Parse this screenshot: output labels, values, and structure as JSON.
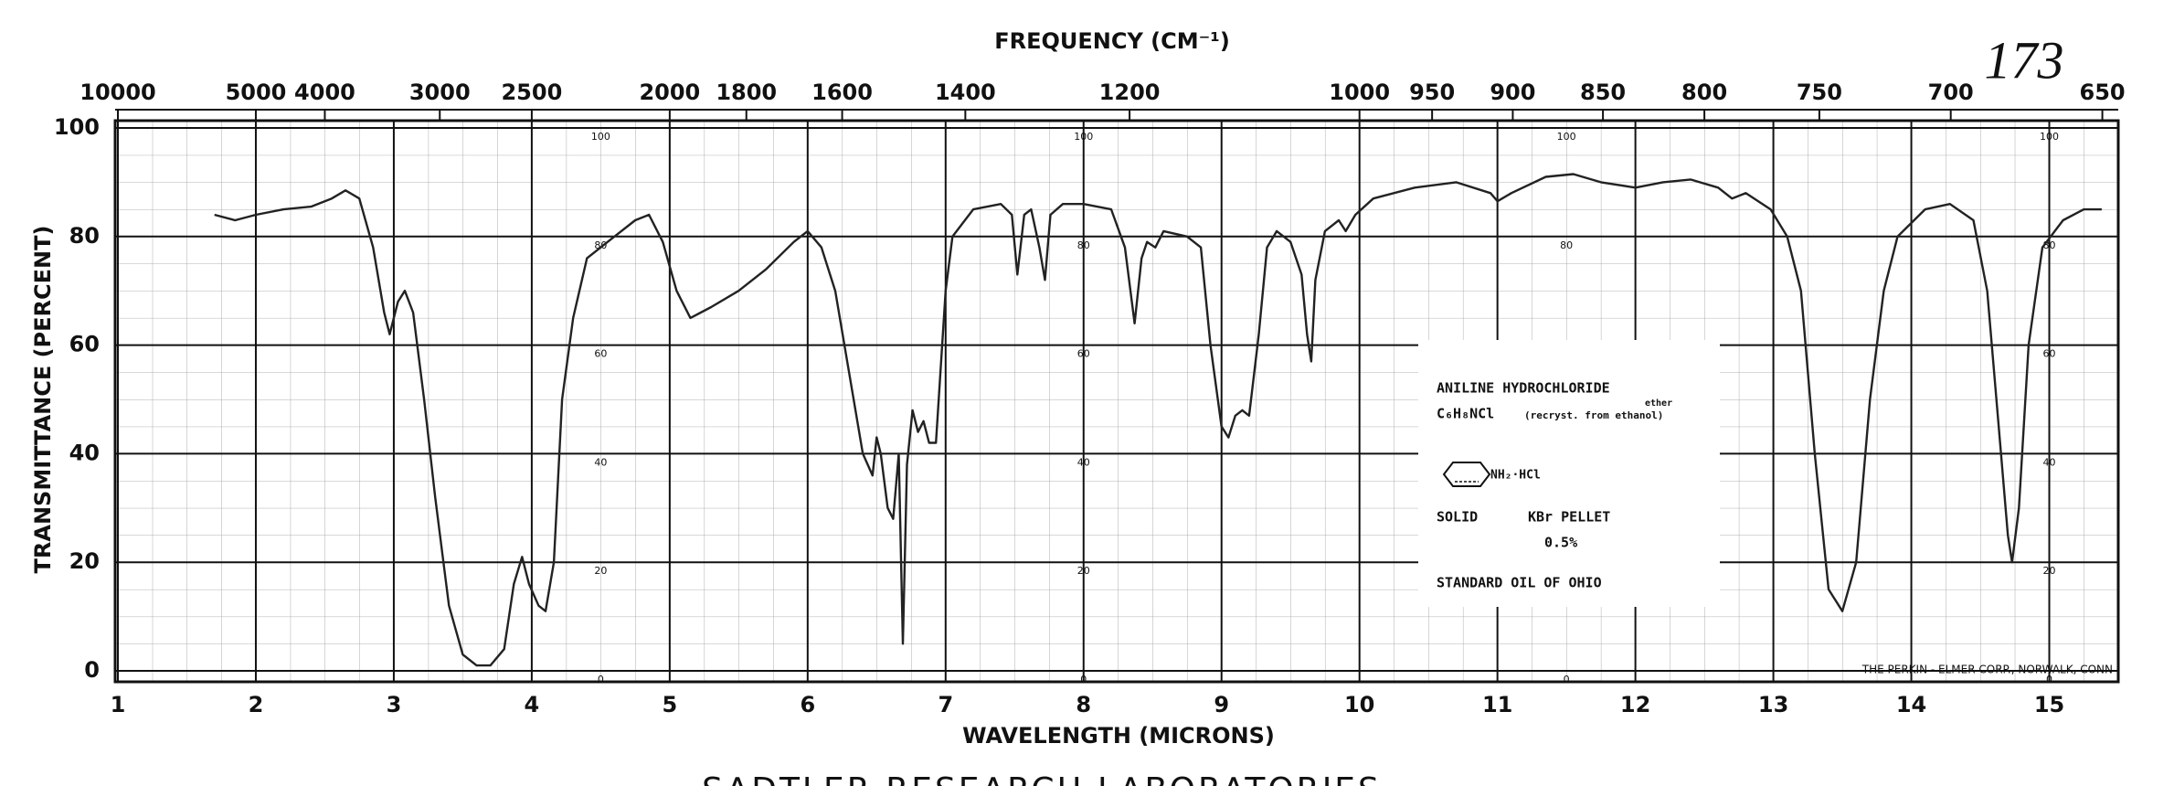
{
  "chart_data": {
    "type": "line",
    "title": "FREQUENCY (CM⁻¹)",
    "x_label": "WAVELENGTH (MICRONS)",
    "y_label": "TRANSMITTANCE (PERCENT)",
    "footer": "SADTLER RESEARCH LABORATORIES",
    "handwritten_number": "173",
    "credit": "THE PERKIN - ELMER CORP., NORWALK, CONN",
    "sample_box": {
      "compound": "ANILINE HYDROCHLORIDE",
      "formula": "C₆H₈NCl",
      "recrystallization": "(recryst. from ethanol)",
      "correction": "ether",
      "structure_label": "NH₂·HCl",
      "state": "SOLID",
      "method": "KBr PELLET",
      "concentration": "0.5%",
      "source": "STANDARD OIL OF OHIO"
    },
    "color": "#222222",
    "grid": true,
    "xlim": [
      1,
      15.5
    ],
    "ylim": [
      0,
      100
    ],
    "xticks": [
      1,
      2,
      3,
      4,
      5,
      6,
      7,
      8,
      9,
      10,
      11,
      12,
      13,
      14,
      15
    ],
    "yticks": [
      0,
      20,
      40,
      60,
      80,
      100
    ],
    "x2ticks": [
      10000,
      5000,
      4000,
      3000,
      2500,
      2000,
      1800,
      1600,
      1400,
      1200,
      1000,
      950,
      900,
      850,
      800,
      750,
      700,
      650
    ],
    "x": [
      1.7,
      1.85,
      2.0,
      2.2,
      2.4,
      2.55,
      2.65,
      2.75,
      2.85,
      2.93,
      2.97,
      3.03,
      3.08,
      3.14,
      3.22,
      3.3,
      3.4,
      3.5,
      3.6,
      3.7,
      3.8,
      3.87,
      3.93,
      3.98,
      4.05,
      4.1,
      4.16,
      4.22,
      4.3,
      4.4,
      4.55,
      4.75,
      4.85,
      4.95,
      5.05,
      5.15,
      5.3,
      5.5,
      5.7,
      5.9,
      6.0,
      6.1,
      6.2,
      6.3,
      6.4,
      6.47,
      6.5,
      6.53,
      6.58,
      6.62,
      6.66,
      6.69,
      6.72,
      6.76,
      6.8,
      6.84,
      6.88,
      6.93,
      7.0,
      7.05,
      7.2,
      7.4,
      7.48,
      7.52,
      7.57,
      7.62,
      7.68,
      7.72,
      7.76,
      7.85,
      8.0,
      8.2,
      8.3,
      8.37,
      8.42,
      8.46,
      8.52,
      8.58,
      8.75,
      8.85,
      8.92,
      9.0,
      9.05,
      9.1,
      9.15,
      9.2,
      9.27,
      9.33,
      9.4,
      9.5,
      9.58,
      9.62,
      9.65,
      9.68,
      9.75,
      9.85,
      9.9,
      9.97,
      10.1,
      10.4,
      10.7,
      10.95,
      11.0,
      11.1,
      11.35,
      11.55,
      11.75,
      12.0,
      12.2,
      12.4,
      12.6,
      12.7,
      12.8,
      12.98,
      13.1,
      13.2,
      13.3,
      13.4,
      13.5,
      13.6,
      13.7,
      13.8,
      13.9,
      14.1,
      14.28,
      14.45,
      14.55,
      14.65,
      14.7,
      14.73,
      14.78,
      14.85,
      14.95,
      15.1,
      15.25,
      15.38
    ],
    "values": [
      84,
      83,
      84,
      85,
      85.5,
      87,
      88.5,
      87,
      78,
      66,
      62,
      68,
      70,
      66,
      50,
      32,
      12,
      3,
      1,
      1,
      4,
      16,
      21,
      16,
      12,
      11,
      20,
      50,
      65,
      76,
      79,
      83,
      84,
      79,
      70,
      65,
      67,
      70,
      74,
      79,
      81,
      78,
      70,
      55,
      40,
      36,
      43,
      40,
      30,
      28,
      40,
      5,
      38,
      48,
      44,
      46,
      42,
      42,
      70,
      80,
      85,
      86,
      84,
      73,
      84,
      85,
      78,
      72,
      84,
      86,
      86,
      85,
      78,
      64,
      76,
      79,
      78,
      81,
      80,
      78,
      60,
      45,
      43,
      47,
      48,
      47,
      62,
      78,
      81,
      79,
      73,
      62,
      57,
      72,
      81,
      83,
      81,
      84,
      87,
      89,
      90,
      88,
      86.5,
      88,
      91,
      91.5,
      90,
      89,
      90,
      90.5,
      89,
      87,
      88,
      85,
      80,
      70,
      40,
      15,
      11,
      20,
      50,
      70,
      80,
      85,
      86,
      83,
      70,
      40,
      25,
      20,
      30,
      60,
      78,
      83,
      85,
      85
    ]
  }
}
